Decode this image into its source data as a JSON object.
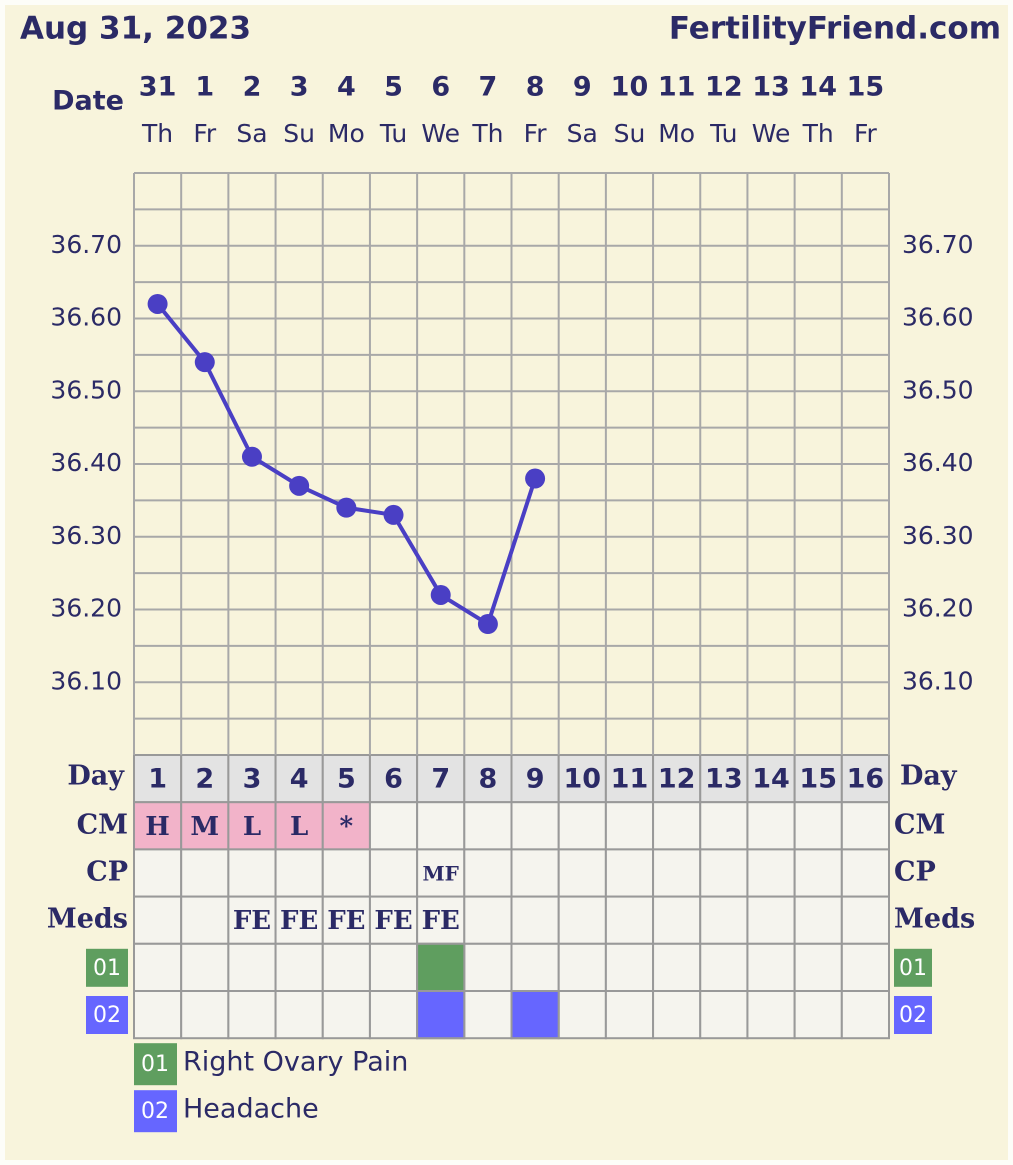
{
  "header": {
    "date": "Aug 31, 2023",
    "site": "FertilityFriend.com"
  },
  "chart_data": {
    "type": "line",
    "x_label": "Date",
    "categories": [
      "31",
      "1",
      "2",
      "3",
      "4",
      "5",
      "6",
      "7",
      "8",
      "9",
      "10",
      "11",
      "12",
      "13",
      "14",
      "15"
    ],
    "weekdays": [
      "Th",
      "Fr",
      "Sa",
      "Su",
      "Mo",
      "Tu",
      "We",
      "Th",
      "Fr",
      "Sa",
      "Su",
      "Mo",
      "Tu",
      "We",
      "Th",
      "Fr"
    ],
    "values": [
      36.62,
      36.54,
      36.41,
      36.37,
      36.34,
      36.33,
      36.22,
      36.18,
      36.38,
      null,
      null,
      null,
      null,
      null,
      null,
      null
    ],
    "color": "#4a3fc4",
    "ylim": [
      36.0,
      36.8
    ],
    "yticks": [
      {
        "value": 36.1,
        "label": "36.10"
      },
      {
        "value": 36.2,
        "label": "36.20"
      },
      {
        "value": 36.3,
        "label": "36.30"
      },
      {
        "value": 36.4,
        "label": "36.40"
      },
      {
        "value": 36.5,
        "label": "36.50"
      },
      {
        "value": 36.6,
        "label": "36.60"
      },
      {
        "value": 36.7,
        "label": "36.70"
      }
    ],
    "minor_grid": [
      36.05,
      36.15,
      36.25,
      36.35,
      36.45,
      36.55,
      36.65,
      36.75
    ],
    "grid": true
  },
  "table": {
    "day_label": "Day",
    "days": [
      "1",
      "2",
      "3",
      "4",
      "5",
      "6",
      "7",
      "8",
      "9",
      "10",
      "11",
      "12",
      "13",
      "14",
      "15",
      "16"
    ],
    "rows": [
      {
        "label": "CM",
        "color": "#f2b3c9",
        "cells": [
          "H",
          "M",
          "L",
          "L",
          "*",
          null,
          null,
          null,
          null,
          null,
          null,
          null,
          null,
          null,
          null,
          null
        ]
      },
      {
        "label": "CP",
        "cells": [
          null,
          null,
          null,
          null,
          null,
          null,
          "MF",
          null,
          null,
          null,
          null,
          null,
          null,
          null,
          null,
          null
        ]
      },
      {
        "label": "Meds",
        "cells": [
          null,
          null,
          "FE",
          "FE",
          "FE",
          "FE",
          "FE",
          null,
          null,
          null,
          null,
          null,
          null,
          null,
          null,
          null
        ]
      }
    ],
    "symptoms": [
      {
        "code": "01",
        "name": "Right Ovary Pain",
        "color": "#5f9e5f",
        "days": [
          7
        ]
      },
      {
        "code": "02",
        "name": "Headache",
        "color": "#6666ff",
        "days": [
          7,
          9
        ]
      }
    ]
  }
}
